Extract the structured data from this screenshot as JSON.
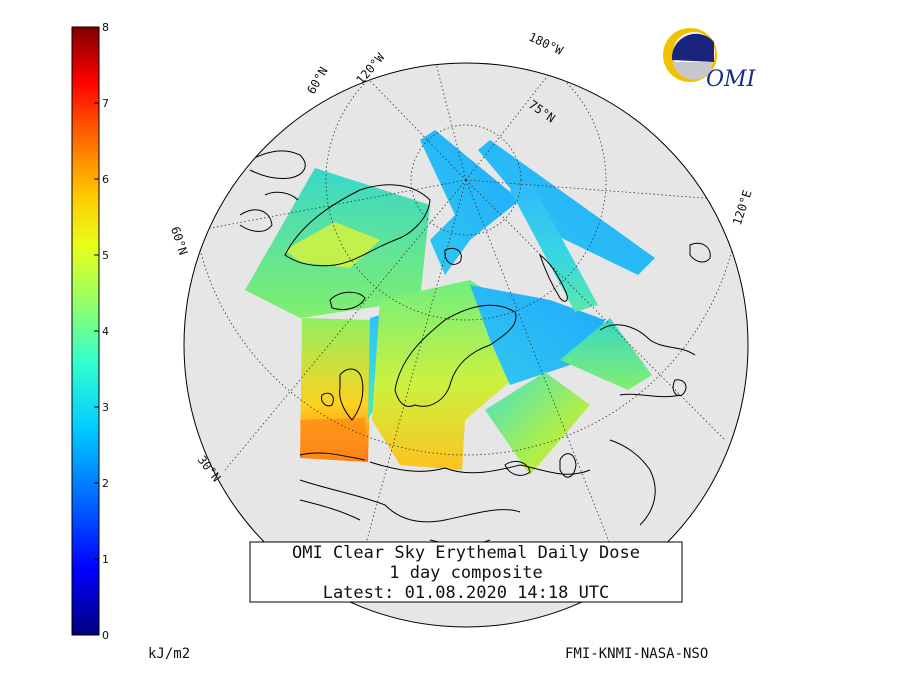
{
  "title_box": {
    "line1": "OMI Clear Sky Erythemal Daily Dose",
    "line2": "1 day composite",
    "line3": "Latest: 01.08.2020 14:18 UTC"
  },
  "colorbar": {
    "min": 0,
    "max": 8,
    "ticks": [
      "0",
      "1",
      "2",
      "3",
      "4",
      "5",
      "6",
      "7",
      "8"
    ],
    "unit": "kJ/m2",
    "colormap": "jet"
  },
  "credits": "FMI-KNMI-NASA-NSO",
  "logo": {
    "text": "OMI",
    "icon": "omi-sun-globe-icon",
    "colors": {
      "gold": "#f2c200",
      "navy": "#1a237e"
    }
  },
  "graticule_labels": {
    "lat_60_top": "60°N",
    "lon_120w": "120°W",
    "lon_180w": "180°W",
    "lat_75": "75°N",
    "lon_120e": "120°E",
    "lat_60_left": "60°N",
    "lat_30": "30°N"
  },
  "map": {
    "projection": "polar",
    "land_color": "#e6e6e6",
    "ocean_color": "#e6e6e6",
    "coast_color": "#000000"
  }
}
